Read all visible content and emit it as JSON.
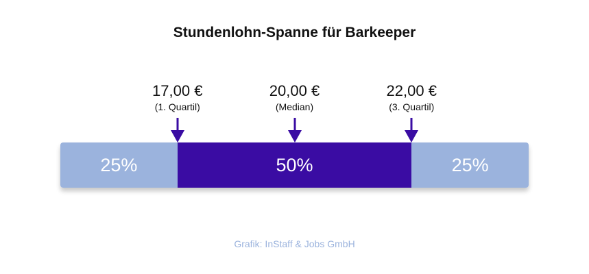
{
  "chart_data": {
    "type": "bar",
    "title": "Stundenlohn-Spanne für Barkeeper",
    "segments": [
      {
        "label": "25%",
        "share": 25,
        "color": "#9bb3dd"
      },
      {
        "label": "50%",
        "share": 50,
        "color": "#3a0ca3"
      },
      {
        "label": "25%",
        "share": 25,
        "color": "#9bb3dd"
      }
    ],
    "markers": [
      {
        "value": "17,00 €",
        "label": "(1. Quartil)",
        "cumulative_share": 25
      },
      {
        "value": "20,00 €",
        "label": "(Median)",
        "cumulative_share": 50
      },
      {
        "value": "22,00 €",
        "label": "(3. Quartil)",
        "cumulative_share": 75
      }
    ],
    "arrow_color": "#3a0ca3"
  },
  "footer": {
    "source": "Grafik: InStaff & Jobs GmbH",
    "color": "#9bb3dd"
  }
}
